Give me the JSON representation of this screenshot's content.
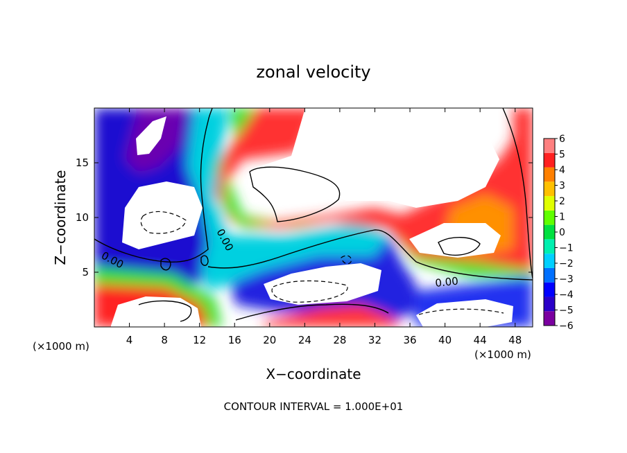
{
  "chart_data": {
    "type": "heatmap",
    "title": "zonal velocity",
    "xlabel": "X−coordinate",
    "ylabel": "Z−coordinate",
    "x_units": "(×1000 m)",
    "xlim": [
      0,
      50
    ],
    "ylim": [
      0,
      20
    ],
    "x_ticks": [
      4,
      8,
      12,
      16,
      20,
      24,
      28,
      32,
      36,
      40,
      44,
      48
    ],
    "x_tick_labels": [
      "4",
      "8",
      "12",
      "16",
      "20",
      "24",
      "28",
      "32",
      "36",
      "40",
      "44",
      "48"
    ],
    "y_ticks": [
      5,
      10,
      15
    ],
    "y_tick_labels": [
      "5",
      "10",
      "15"
    ],
    "colorbar": {
      "min": -6,
      "max": 6,
      "ticks": [
        6,
        5,
        4,
        3,
        2,
        1,
        0,
        -1,
        -2,
        -3,
        -4,
        -5,
        -6
      ],
      "tick_labels": [
        "6",
        "5",
        "4",
        "3",
        "2",
        "1",
        "0",
        "−1",
        "−2",
        "−3",
        "−4",
        "−5",
        "−6"
      ],
      "colors": [
        "#7b00a0",
        "#2a00c8",
        "#0000ff",
        "#0070ff",
        "#00d0ff",
        "#00f0b0",
        "#00e040",
        "#60ff00",
        "#e0ff00",
        "#ffc000",
        "#ff8000",
        "#ff2020",
        "#ff8080"
      ],
      "out_of_range_color": "#ffffff"
    },
    "contour_labels": [
      "0.00",
      "0.00",
      "0.00"
    ],
    "contour_interval_text": "CONTOUR INTERVAL = 1.000E+01",
    "grid": false,
    "legend": "colorbar right"
  }
}
